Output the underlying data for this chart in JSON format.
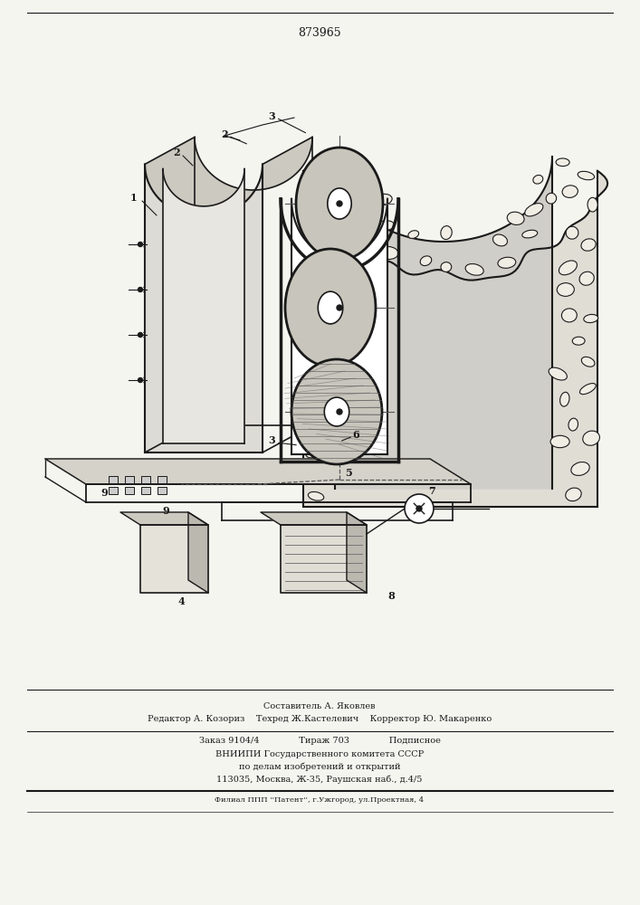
{
  "patent_number": "873965",
  "bg_color": "#f5f5f0",
  "line_color": "#1a1a1a",
  "title_fontsize": 9,
  "body_fontsize": 7,
  "small_fontsize": 6,
  "footer_lines": [
    "Составитель А. Яковлев",
    "Редактор А. Козориз    Техред Ж.Кастелевич    Корректор Ю. Макаренко",
    "Заказ 9104/4              Тираж 703              Подписное",
    "ВНИИПИ Государственного комитета СССР",
    "по делам изобретений и открытий",
    "113035, Москва, Ж-35, Раушская наб., д.4/5",
    "Филиал ППП ''Патент'', г.Ужгород, ул.Проектная, 4"
  ]
}
